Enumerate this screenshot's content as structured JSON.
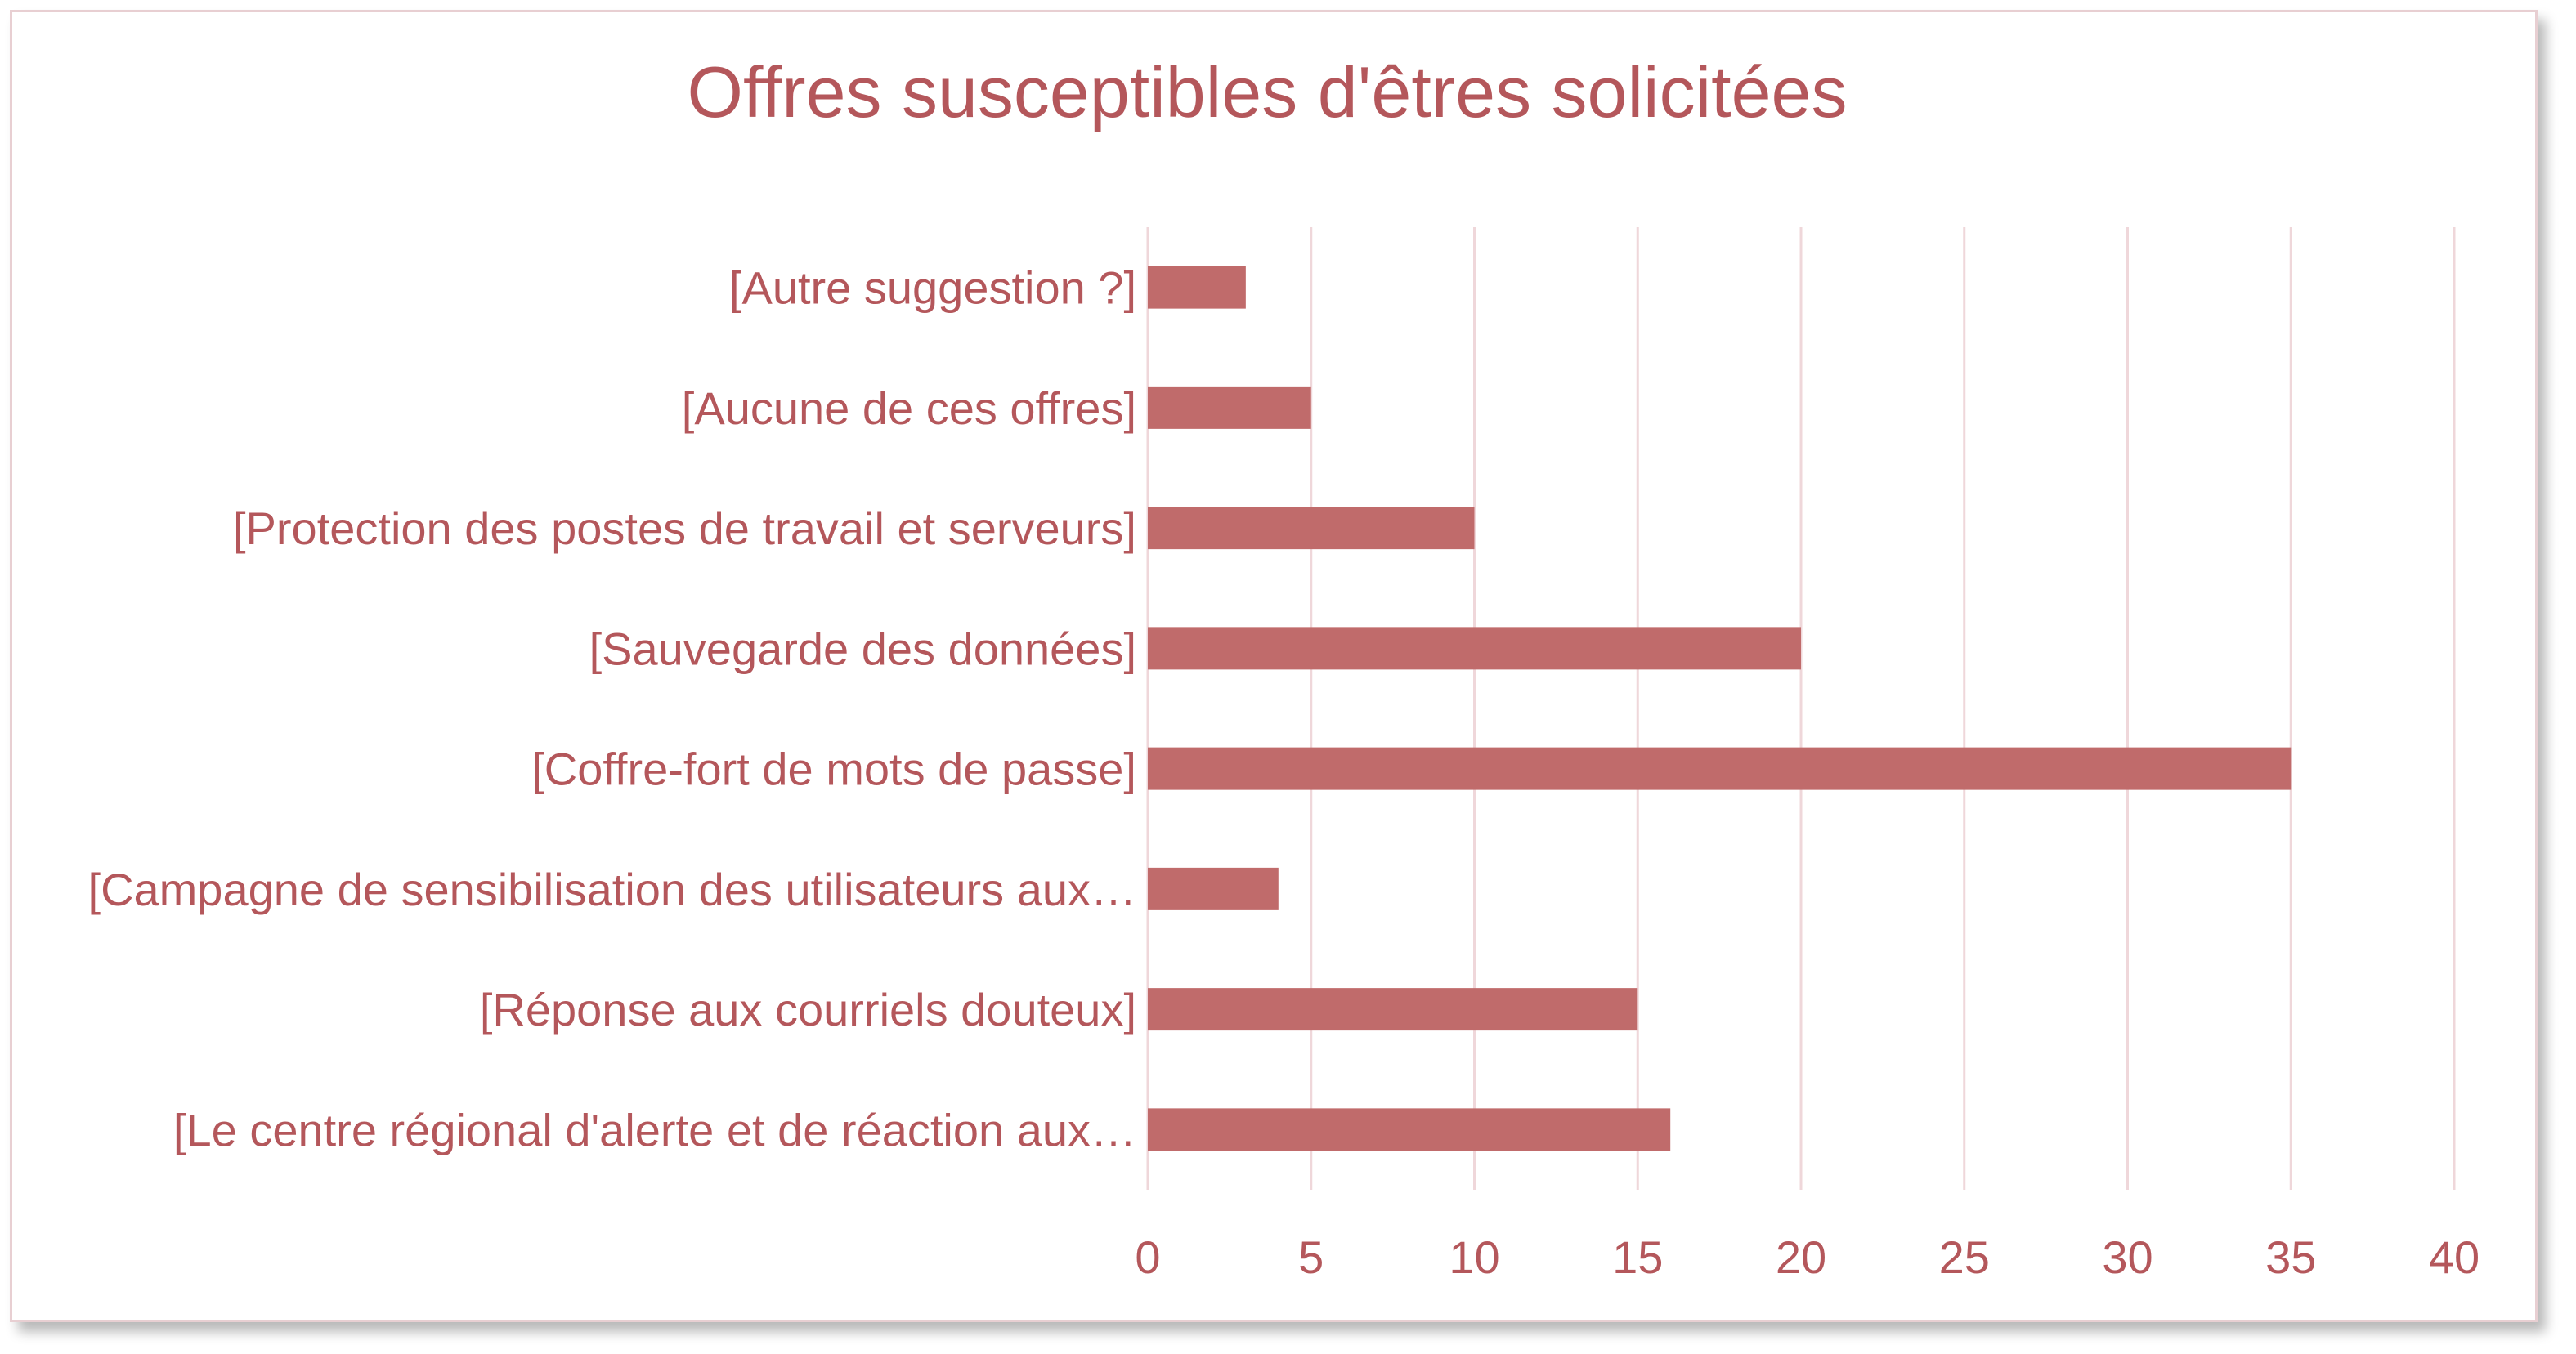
{
  "chart_data": {
    "type": "bar",
    "orientation": "horizontal",
    "title": "Offres susceptibles d'êtres solicitées",
    "xlabel": "",
    "ylabel": "",
    "categories": [
      "[Autre suggestion ?]",
      "[Aucune de ces offres]",
      "[Protection des postes de travail et serveurs]",
      "[Sauvegarde des données]",
      "[Coffre-fort de mots de passe]",
      "[Campagne de sensibilisation des utilisateurs aux…",
      "[Réponse aux courriels douteux]",
      "[Le centre régional d'alerte et de réaction aux…"
    ],
    "values": [
      3,
      5,
      10,
      20,
      35,
      4,
      15,
      16
    ],
    "xlim": [
      0,
      40
    ],
    "xticks": [
      0,
      5,
      10,
      15,
      20,
      25,
      30,
      35,
      40
    ],
    "grid": "vertical",
    "legend": "none",
    "colors": {
      "bar": "#c06b6b",
      "text": "#b4575b",
      "grid": "#efd7da",
      "border": "#e8cfd2"
    }
  }
}
